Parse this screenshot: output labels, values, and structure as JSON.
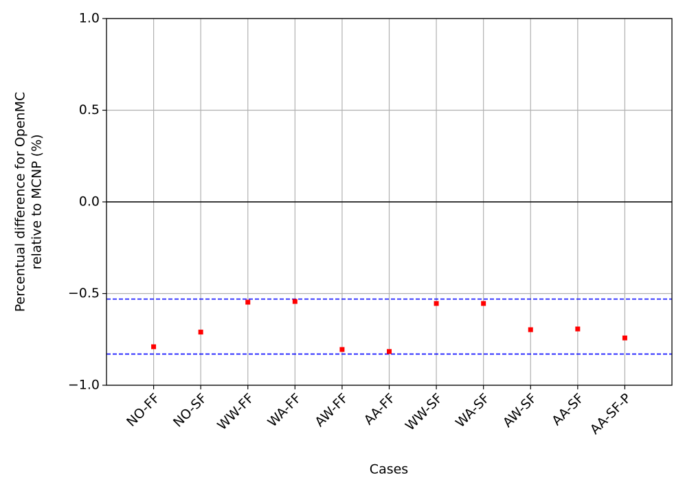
{
  "chart_data": {
    "type": "scatter",
    "xlabel": "Cases",
    "ylabel": [
      "Percentual difference for OpenMC",
      "relative to MCNP (%)"
    ],
    "categories": [
      "NO-FF",
      "NO-SF",
      "WW-FF",
      "WA-FF",
      "AW-FF",
      "AA-FF",
      "WW-SF",
      "WA-SF",
      "AW-SF",
      "AA-SF",
      "AA-SF-P"
    ],
    "values": [
      -0.79,
      -0.71,
      -0.547,
      -0.543,
      -0.805,
      -0.816,
      -0.554,
      -0.554,
      -0.697,
      -0.693,
      -0.742
    ],
    "color": "#ff0000",
    "ylim": [
      -1.0,
      1.0
    ],
    "yticks": [
      {
        "value": -1.0,
        "label": "−1.0"
      },
      {
        "value": -0.5,
        "label": "−0.5"
      },
      {
        "value": 0,
        "label": "0.0"
      },
      {
        "value": 0.5,
        "label": "0.5"
      },
      {
        "value": 1.0,
        "label": "1.0"
      }
    ],
    "grid": true,
    "hlines": [
      {
        "value": 0,
        "color": "#000000",
        "dash": false
      },
      {
        "value": -0.53,
        "color": "#0000ff",
        "dash": true
      },
      {
        "value": -0.83,
        "color": "#0000ff",
        "dash": true
      }
    ]
  }
}
